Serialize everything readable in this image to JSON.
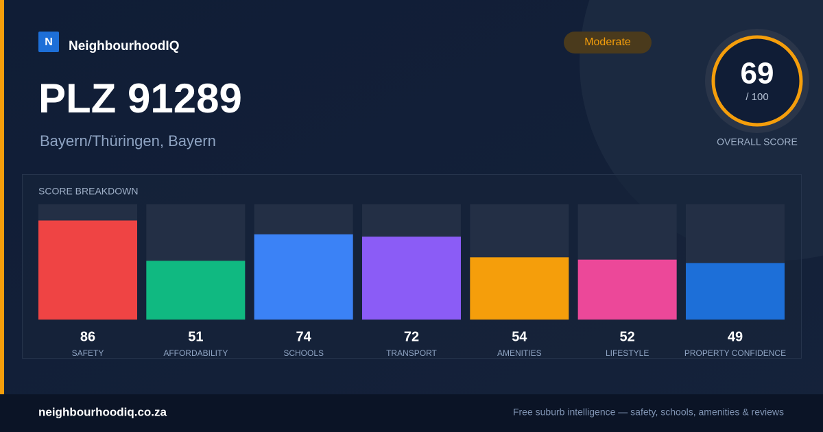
{
  "brand": "NeighbourhoodIQ",
  "brand_initial": "N",
  "title": "PLZ 91289",
  "location": "Bayern/Thüringen, Bayern",
  "badge": "Moderate",
  "overall": {
    "score": 69,
    "max_label": "/ 100",
    "label": "OVERALL SCORE"
  },
  "chart_data": {
    "type": "bar",
    "title": "SCORE BREAKDOWN",
    "categories": [
      "SAFETY",
      "AFFORDABILITY",
      "SCHOOLS",
      "TRANSPORT",
      "AMENITIES",
      "LIFESTYLE",
      "PROPERTY CONFIDENCE"
    ],
    "values": [
      86,
      51,
      74,
      72,
      54,
      52,
      49
    ],
    "colors": [
      "#ef4444",
      "#10b981",
      "#3b82f6",
      "#8b5cf6",
      "#f59e0b",
      "#ec4899",
      "#1d6fd8"
    ],
    "ylim": [
      0,
      100
    ]
  },
  "footer": {
    "site": "neighbourhoodiq.co.za",
    "tagline": "Free suburb intelligence — safety, schools, amenities & reviews"
  }
}
